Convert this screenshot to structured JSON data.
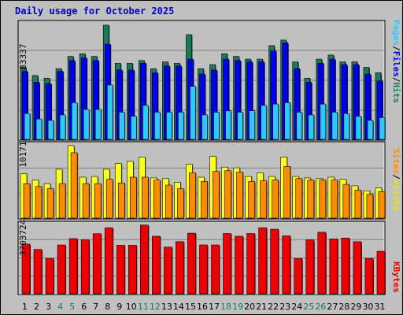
{
  "title": "Daily usage for October 2025",
  "colors": {
    "hits": "#1a7a5a",
    "files": "#0000e8",
    "pages": "#2ec8ff",
    "visits": "#ffff22",
    "sites": "#ff8c00",
    "kbytes": "#ee0000",
    "background": "#c0c0c0",
    "weekend_label": "#1a7a5a",
    "weekday_label": "#000000"
  },
  "chart_data": [
    {
      "type": "bar",
      "title": "Daily usage for October 2025",
      "ymax_label": "83337",
      "legend": [
        "Pages",
        "Files",
        "Hits"
      ],
      "legend_separator": "/",
      "grid": true,
      "categories": [
        "1",
        "2",
        "3",
        "4",
        "5",
        "6",
        "7",
        "8",
        "9",
        "10",
        "11",
        "12",
        "13",
        "14",
        "15",
        "16",
        "17",
        "18",
        "19",
        "20",
        "21",
        "22",
        "23",
        "24",
        "25",
        "26",
        "27",
        "28",
        "29",
        "30",
        "31"
      ],
      "weekend_days": [
        "4",
        "5",
        "11",
        "12",
        "18",
        "19",
        "25",
        "26"
      ],
      "series": [
        {
          "name": "Hits",
          "values": [
            53000,
            47000,
            45000,
            52000,
            61000,
            63000,
            61000,
            84000,
            56000,
            56000,
            58000,
            52000,
            57000,
            56000,
            77000,
            52000,
            55000,
            63000,
            61000,
            59000,
            59000,
            69000,
            73000,
            57000,
            45000,
            59000,
            62000,
            57000,
            57000,
            53000,
            49000
          ]
        },
        {
          "name": "Files",
          "values": [
            50000,
            42000,
            41000,
            50000,
            58000,
            60000,
            58000,
            70000,
            51000,
            51000,
            56000,
            49000,
            54000,
            54000,
            59000,
            48000,
            51000,
            59000,
            58000,
            57000,
            57000,
            65000,
            71000,
            52000,
            42000,
            56000,
            59000,
            55000,
            55000,
            48000,
            43000
          ]
        },
        {
          "name": "Pages",
          "values": [
            19000,
            15000,
            14000,
            18000,
            27000,
            22000,
            22000,
            40000,
            20000,
            17000,
            25000,
            20000,
            20000,
            20000,
            39000,
            18000,
            20000,
            21000,
            20000,
            21000,
            25000,
            26000,
            27000,
            20000,
            18000,
            26000,
            20000,
            19000,
            17000,
            14000,
            16000
          ]
        }
      ]
    },
    {
      "type": "bar",
      "ymax_label": "10171",
      "legend": [
        "Sites",
        "Visits"
      ],
      "legend_separator": "/",
      "grid": true,
      "categories": [
        "1",
        "2",
        "3",
        "4",
        "5",
        "6",
        "7",
        "8",
        "9",
        "10",
        "11",
        "12",
        "13",
        "14",
        "15",
        "16",
        "17",
        "18",
        "19",
        "20",
        "21",
        "22",
        "23",
        "24",
        "25",
        "26",
        "27",
        "28",
        "29",
        "30",
        "31"
      ],
      "series": [
        {
          "name": "Visits",
          "values": [
            6200,
            5300,
            4800,
            6800,
            10100,
            5700,
            5800,
            6800,
            7600,
            7900,
            8500,
            5600,
            5500,
            5000,
            7500,
            5700,
            8600,
            7100,
            7000,
            5800,
            6300,
            5800,
            8500,
            5800,
            5600,
            5500,
            5700,
            5400,
            4500,
            3800,
            4200
          ]
        },
        {
          "name": "Sites",
          "values": [
            4800,
            4400,
            4100,
            4800,
            9100,
            4800,
            4800,
            5400,
            4900,
            5700,
            5700,
            5300,
            4600,
            4100,
            6300,
            5100,
            6500,
            6600,
            6400,
            5100,
            5200,
            5300,
            7200,
            5500,
            5300,
            5300,
            5300,
            4700,
            3900,
            3300,
            3700
          ]
        }
      ]
    },
    {
      "type": "bar",
      "ymax_label": "3703724",
      "legend": [
        "KBytes"
      ],
      "grid": true,
      "categories": [
        "1",
        "2",
        "3",
        "4",
        "5",
        "6",
        "7",
        "8",
        "9",
        "10",
        "11",
        "12",
        "13",
        "14",
        "15",
        "16",
        "17",
        "18",
        "19",
        "20",
        "21",
        "22",
        "23",
        "24",
        "25",
        "26",
        "27",
        "28",
        "29",
        "30",
        "31"
      ],
      "series": [
        {
          "name": "KBytes",
          "values": [
            2750000,
            2450000,
            1950000,
            2700000,
            3050000,
            2980000,
            3320000,
            3650000,
            2680000,
            2680000,
            3800000,
            3180000,
            2580000,
            2880000,
            3350000,
            2700000,
            2700000,
            3330000,
            3180000,
            3330000,
            3650000,
            3570000,
            3200000,
            1950000,
            2980000,
            3400000,
            3030000,
            3080000,
            2880000,
            1950000,
            2350000
          ]
        }
      ]
    }
  ]
}
